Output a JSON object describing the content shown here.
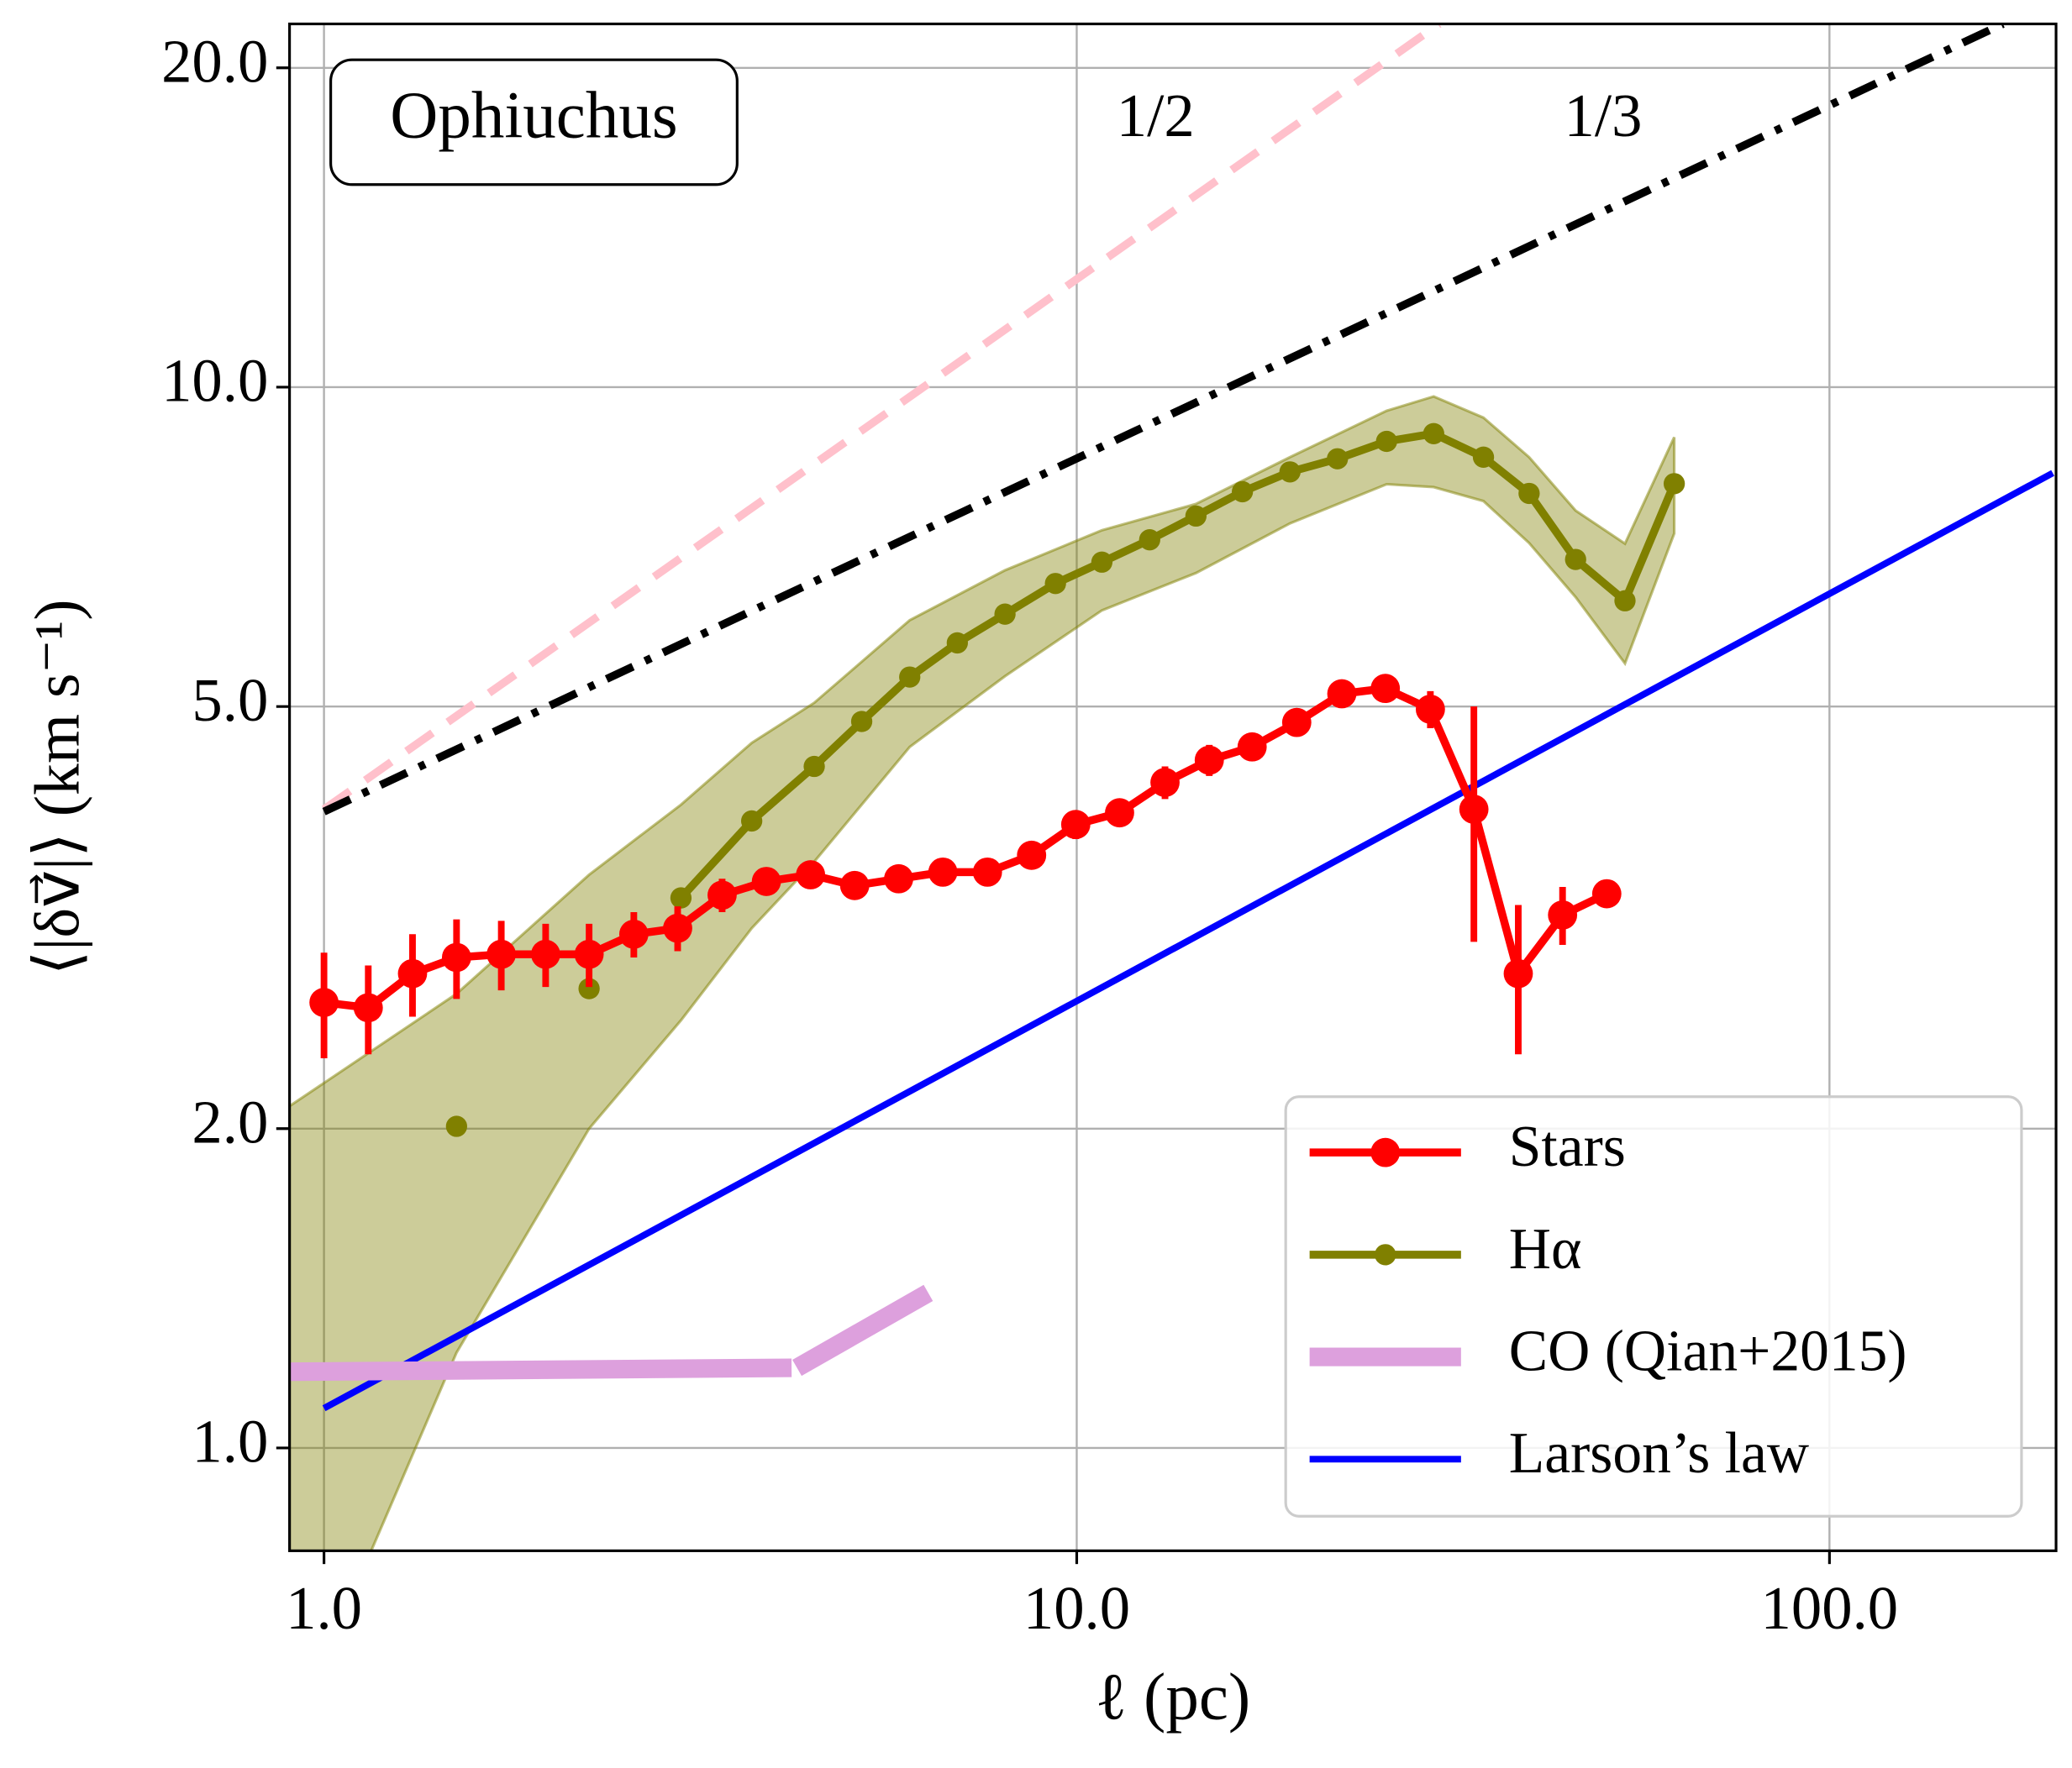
{
  "chart_data": {
    "type": "line",
    "annotation": "Ophiuchus",
    "x_label": "ℓ (pc)",
    "y_label": "⟨|δv⃗|⟩ (km s⁻¹)",
    "xscale": "log",
    "yscale": "log",
    "grid": true,
    "legend": "lower right",
    "xlim": [
      0.9,
      200
    ],
    "ylim": [
      0.8,
      22
    ],
    "xticks": [
      {
        "value": 1,
        "label": "1.0"
      },
      {
        "value": 10,
        "label": "10.0"
      },
      {
        "value": 100,
        "label": "100.0"
      }
    ],
    "yticks": [
      {
        "value": 1,
        "label": "1.0"
      },
      {
        "value": 2,
        "label": "2.0"
      },
      {
        "value": 5,
        "label": "5.0"
      },
      {
        "value": 10,
        "label": "10.0"
      },
      {
        "value": 20,
        "label": "20.0"
      }
    ],
    "band": {
      "color": "#808000",
      "x": [
        0.9,
        1.5,
        2.25,
        2.98,
        3.7,
        4.48,
        6.0,
        8.03,
        10.8,
        14.4,
        19.2,
        25.8,
        29.8,
        34.7,
        39.9,
        46.0,
        53.5,
        62.2
      ],
      "lower": [
        0.53,
        1.23,
        2.0,
        2.53,
        3.09,
        3.57,
        4.58,
        5.34,
        6.16,
        6.68,
        7.44,
        8.1,
        8.05,
        7.81,
        7.13,
        6.34,
        5.49,
        7.28
      ],
      "upper": [
        2.1,
        2.68,
        3.47,
        4.04,
        4.62,
        5.04,
        6.03,
        6.72,
        7.33,
        7.76,
        8.59,
        9.5,
        9.8,
        9.36,
        8.59,
        7.65,
        7.12,
        8.97
      ]
    },
    "guides": [
      {
        "label": "1/2",
        "color": "#ffc0cb",
        "x": [
          1.0,
          30.3
        ],
        "values": [
          4.0,
          22
        ]
      },
      {
        "label": "1/3",
        "color": "#000000",
        "x": [
          1.0,
          170
        ],
        "values": [
          3.98,
          22
        ]
      }
    ],
    "series": [
      {
        "name": "Stars",
        "color": "#ff0000",
        "x": [
          1.0,
          1.145,
          1.311,
          1.5,
          1.72,
          1.97,
          2.25,
          2.58,
          2.95,
          3.38,
          3.87,
          4.43,
          5.07,
          5.8,
          6.64,
          7.61,
          8.71,
          9.97,
          11.4,
          13.1,
          15.0,
          17.1,
          19.6,
          22.5,
          25.7,
          29.5,
          33.7,
          38.6,
          44.2,
          50.6
        ],
        "values": [
          2.63,
          2.6,
          2.8,
          2.9,
          2.92,
          2.92,
          2.92,
          3.05,
          3.09,
          3.32,
          3.42,
          3.47,
          3.39,
          3.44,
          3.49,
          3.49,
          3.62,
          3.87,
          3.97,
          4.24,
          4.45,
          4.58,
          4.83,
          5.14,
          5.2,
          4.97,
          4.0,
          2.8,
          3.18,
          3.33
        ],
        "errors": [
          0.3,
          0.25,
          0.25,
          0.25,
          0.22,
          0.2,
          0.2,
          0.15,
          0.15,
          0.12,
          0.1,
          0.1,
          0.08,
          0.08,
          0.08,
          0.08,
          0.1,
          0.12,
          0.12,
          0.15,
          0.15,
          0.12,
          0.1,
          0.1,
          0.08,
          0.2,
          1.0,
          0.45,
          0.2,
          0.08
        ]
      },
      {
        "name": "Hα",
        "color": "#808000",
        "x": [
          1.5,
          1.72,
          1.97,
          2.25,
          2.58,
          2.98,
          3.7,
          4.48,
          5.18,
          6.0,
          6.94,
          8.03,
          9.37,
          10.8,
          12.5,
          14.4,
          16.6,
          19.2,
          22.2,
          25.8,
          29.8,
          34.7,
          39.9,
          46.0,
          53.5,
          62.2
        ],
        "values": [
          2.01,
          null,
          null,
          2.71,
          null,
          3.3,
          3.9,
          4.39,
          4.84,
          5.33,
          5.74,
          6.11,
          6.53,
          6.84,
          7.18,
          7.56,
          7.97,
          8.32,
          8.56,
          8.89,
          9.04,
          8.59,
          7.94,
          6.88,
          6.29,
          8.11
        ]
      },
      {
        "name": "CO (Qian+2015)",
        "color": "#dda0dd",
        "x": [
          0.9,
          4.18,
          4.2,
          4.25,
          6.35
        ],
        "values": [
          1.18,
          1.19,
          null,
          1.19,
          1.4
        ]
      },
      {
        "name": "Larson’s law",
        "color": "#0000ff",
        "x": [
          1.0,
          198
        ],
        "values": [
          1.09,
          8.3
        ]
      }
    ]
  }
}
